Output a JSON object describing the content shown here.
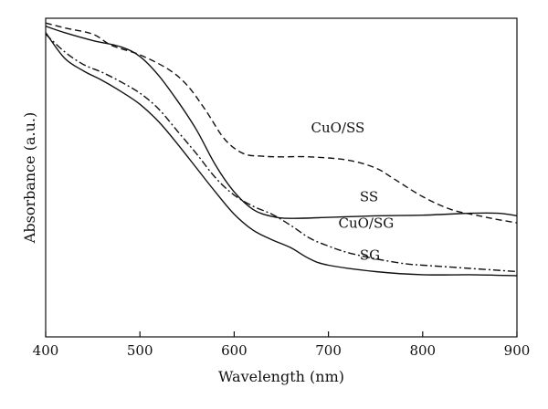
{
  "chart_data": {
    "type": "line",
    "title": "",
    "xlabel": "Wavelength (nm)",
    "ylabel": "Absorbance (a.u.)",
    "xlim": [
      400,
      900
    ],
    "ylim": [
      0,
      1
    ],
    "xticks": [
      400,
      500,
      600,
      700,
      800,
      900
    ],
    "yticks_shown": false,
    "grid": false,
    "legend": "none (series labelled directly on curves)",
    "series": [
      {
        "name": "CuO/SS",
        "style": "dashed",
        "color": "#111111",
        "label_at": [
          710,
          0.642
        ],
        "x": [
          400,
          420,
          450,
          470,
          500,
          530,
          550,
          570,
          590,
          610,
          630,
          650,
          680,
          720,
          750,
          770,
          800,
          830,
          860,
          880,
          900
        ],
        "y": [
          0.985,
          0.97,
          0.95,
          0.915,
          0.885,
          0.84,
          0.79,
          0.71,
          0.62,
          0.575,
          0.567,
          0.565,
          0.565,
          0.555,
          0.53,
          0.495,
          0.44,
          0.4,
          0.38,
          0.368,
          0.358
        ]
      },
      {
        "name": "SS",
        "style": "solid",
        "color": "#111111",
        "label_at": [
          743,
          0.425
        ],
        "x": [
          400,
          420,
          450,
          480,
          500,
          520,
          540,
          560,
          580,
          600,
          620,
          640,
          660,
          700,
          750,
          800,
          850,
          880,
          900
        ],
        "y": [
          0.975,
          0.955,
          0.93,
          0.91,
          0.88,
          0.82,
          0.74,
          0.65,
          0.54,
          0.455,
          0.4,
          0.378,
          0.372,
          0.375,
          0.38,
          0.382,
          0.388,
          0.388,
          0.38
        ]
      },
      {
        "name": "CuO/SG",
        "style": "dash-dot",
        "color": "#111111",
        "label_at": [
          740,
          0.343
        ],
        "x": [
          400,
          420,
          440,
          460,
          480,
          500,
          520,
          540,
          560,
          580,
          600,
          620,
          640,
          660,
          680,
          700,
          720,
          750,
          780,
          800,
          850,
          900
        ],
        "y": [
          0.95,
          0.895,
          0.855,
          0.83,
          0.8,
          0.765,
          0.715,
          0.645,
          0.575,
          0.5,
          0.445,
          0.41,
          0.385,
          0.35,
          0.31,
          0.285,
          0.265,
          0.245,
          0.23,
          0.225,
          0.215,
          0.205
        ]
      },
      {
        "name": "SG",
        "style": "solid",
        "color": "#111111",
        "label_at": [
          744,
          0.242
        ],
        "x": [
          400,
          420,
          440,
          460,
          480,
          500,
          520,
          540,
          560,
          580,
          600,
          620,
          640,
          660,
          680,
          700,
          750,
          800,
          850,
          900
        ],
        "y": [
          0.955,
          0.875,
          0.835,
          0.805,
          0.77,
          0.73,
          0.675,
          0.605,
          0.53,
          0.455,
          0.385,
          0.335,
          0.305,
          0.28,
          0.245,
          0.225,
          0.205,
          0.195,
          0.195,
          0.192
        ]
      }
    ]
  }
}
